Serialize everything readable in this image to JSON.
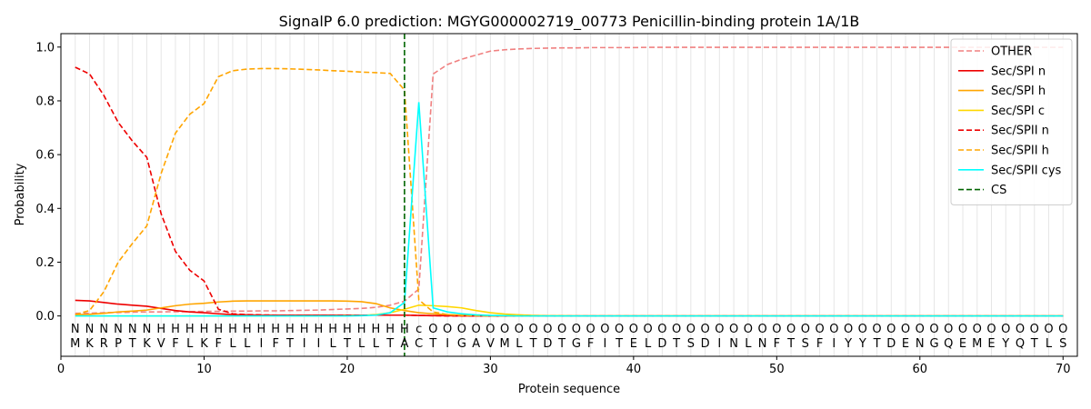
{
  "chart_data": {
    "type": "line",
    "title": "SignalP 6.0 prediction: MGYG000002719_00773 Penicillin-binding protein 1A/1B",
    "xlabel": "Protein sequence",
    "ylabel": "Probability",
    "xlim": [
      0,
      71
    ],
    "ylim": [
      -0.15,
      1.05
    ],
    "xticks": [
      0,
      10,
      20,
      30,
      40,
      50,
      60,
      70
    ],
    "yticks": [
      0.0,
      0.2,
      0.4,
      0.6,
      0.8,
      1.0
    ],
    "xtick_labels": [
      "0",
      "10",
      "20",
      "30",
      "40",
      "50",
      "60",
      "70"
    ],
    "ytick_labels": [
      "0.0",
      "0.2",
      "0.4",
      "0.6",
      "0.8",
      "1.0"
    ],
    "vertical_gridlines_every_position": true,
    "legend_position": "top-right",
    "sequence": [
      "M",
      "K",
      "R",
      "P",
      "T",
      "K",
      "V",
      "F",
      "L",
      "K",
      "F",
      "L",
      "L",
      "I",
      "F",
      "T",
      "I",
      "I",
      "L",
      "T",
      "L",
      "L",
      "T",
      "A",
      "C",
      "T",
      "I",
      "G",
      "A",
      "V",
      "M",
      "L",
      "T",
      "D",
      "T",
      "G",
      "F",
      "I",
      "T",
      "E",
      "L",
      "D",
      "T",
      "S",
      "D",
      "I",
      "N",
      "L",
      "N",
      "F",
      "T",
      "S",
      "F",
      "I",
      "Y",
      "Y",
      "T",
      "D",
      "E",
      "N",
      "G",
      "Q",
      "E",
      "M",
      "E",
      "Y",
      "Q",
      "T",
      "L",
      "S"
    ],
    "region_labels": [
      "N",
      "N",
      "N",
      "N",
      "N",
      "N",
      "H",
      "H",
      "H",
      "H",
      "H",
      "H",
      "H",
      "H",
      "H",
      "H",
      "H",
      "H",
      "H",
      "H",
      "H",
      "H",
      "H",
      "H",
      "c",
      "O",
      "O",
      "O",
      "O",
      "O",
      "O",
      "O",
      "O",
      "O",
      "O",
      "O",
      "O",
      "O",
      "O",
      "O",
      "O",
      "O",
      "O",
      "O",
      "O",
      "O",
      "O",
      "O",
      "O",
      "O",
      "O",
      "O",
      "O",
      "O",
      "O",
      "O",
      "O",
      "O",
      "O",
      "O",
      "O",
      "O",
      "O",
      "O",
      "O",
      "O",
      "O",
      "O",
      "O",
      "O"
    ],
    "region_colors": {
      "N": "#ff0000",
      "H": "#ffa500",
      "c": "#00e5ee",
      "O": "#808080"
    },
    "cleavage_site": 24,
    "series": [
      {
        "name": "OTHER",
        "color": "#f08080",
        "dash": "dashed",
        "values": [
          0.01,
          0.01,
          0.012,
          0.013,
          0.014,
          0.015,
          0.015,
          0.016,
          0.016,
          0.017,
          0.017,
          0.018,
          0.018,
          0.019,
          0.019,
          0.02,
          0.021,
          0.022,
          0.024,
          0.026,
          0.028,
          0.032,
          0.04,
          0.055,
          0.1,
          0.9,
          0.935,
          0.955,
          0.97,
          0.985,
          0.99,
          0.993,
          0.995,
          0.996,
          0.997,
          0.997,
          0.998,
          0.998,
          0.998,
          0.998,
          0.999,
          0.999,
          0.999,
          0.999,
          0.999,
          0.999,
          0.999,
          0.999,
          0.999,
          0.999,
          0.999,
          0.999,
          0.999,
          0.999,
          0.999,
          0.999,
          0.999,
          0.999,
          0.999,
          0.999,
          0.999,
          0.999,
          0.999,
          0.999,
          0.999,
          0.999,
          0.999,
          0.999,
          0.999,
          0.999
        ]
      },
      {
        "name": "Sec/SPI n",
        "color": "#ee0000",
        "dash": "solid",
        "values": [
          0.058,
          0.056,
          0.05,
          0.044,
          0.04,
          0.036,
          0.028,
          0.02,
          0.015,
          0.012,
          0.008,
          0.005,
          0.004,
          0.003,
          0.003,
          0.003,
          0.003,
          0.003,
          0.003,
          0.003,
          0.003,
          0.003,
          0.003,
          0.003,
          0.002,
          0.001,
          0.001,
          0.0,
          0.0,
          0.0,
          0.0,
          0.0,
          0.0,
          0.0,
          0.0,
          0.0,
          0.0,
          0.0,
          0.0,
          0.0,
          0.0,
          0.0,
          0.0,
          0.0,
          0.0,
          0.0,
          0.0,
          0.0,
          0.0,
          0.0,
          0.0,
          0.0,
          0.0,
          0.0,
          0.0,
          0.0,
          0.0,
          0.0,
          0.0,
          0.0,
          0.0,
          0.0,
          0.0,
          0.0,
          0.0,
          0.0,
          0.0,
          0.0,
          0.0,
          0.0
        ]
      },
      {
        "name": "Sec/SPI h",
        "color": "#ffa500",
        "dash": "solid",
        "values": [
          0.005,
          0.006,
          0.01,
          0.015,
          0.018,
          0.022,
          0.03,
          0.038,
          0.044,
          0.047,
          0.052,
          0.055,
          0.056,
          0.056,
          0.056,
          0.056,
          0.056,
          0.056,
          0.056,
          0.055,
          0.053,
          0.046,
          0.03,
          0.02,
          0.012,
          0.008,
          0.005,
          0.003,
          0.002,
          0.001,
          0.001,
          0.0,
          0.0,
          0.0,
          0.0,
          0.0,
          0.0,
          0.0,
          0.0,
          0.0,
          0.0,
          0.0,
          0.0,
          0.0,
          0.0,
          0.0,
          0.0,
          0.0,
          0.0,
          0.0,
          0.0,
          0.0,
          0.0,
          0.0,
          0.0,
          0.0,
          0.0,
          0.0,
          0.0,
          0.0,
          0.0,
          0.0,
          0.0,
          0.0,
          0.0,
          0.0,
          0.0,
          0.0,
          0.0,
          0.0
        ]
      },
      {
        "name": "Sec/SPI c",
        "color": "#ffd700",
        "dash": "solid",
        "values": [
          0.0,
          0.0,
          0.0,
          0.0,
          0.0,
          0.0,
          0.0,
          0.0,
          0.0,
          0.0,
          0.0,
          0.0,
          0.0,
          0.0,
          0.0,
          0.0,
          0.0,
          0.0,
          0.0,
          0.001,
          0.002,
          0.005,
          0.012,
          0.025,
          0.04,
          0.038,
          0.035,
          0.03,
          0.02,
          0.012,
          0.007,
          0.004,
          0.002,
          0.001,
          0.001,
          0.0,
          0.0,
          0.0,
          0.0,
          0.0,
          0.0,
          0.0,
          0.0,
          0.0,
          0.0,
          0.0,
          0.0,
          0.0,
          0.0,
          0.0,
          0.0,
          0.0,
          0.0,
          0.0,
          0.0,
          0.0,
          0.0,
          0.0,
          0.0,
          0.0,
          0.0,
          0.0,
          0.0,
          0.0,
          0.0,
          0.0,
          0.0,
          0.0,
          0.0,
          0.0
        ]
      },
      {
        "name": "Sec/SPII n",
        "color": "#ee0000",
        "dash": "dashed",
        "values": [
          0.925,
          0.9,
          0.82,
          0.72,
          0.65,
          0.59,
          0.38,
          0.24,
          0.17,
          0.13,
          0.025,
          0.008,
          0.005,
          0.004,
          0.003,
          0.003,
          0.003,
          0.003,
          0.003,
          0.003,
          0.003,
          0.003,
          0.003,
          0.003,
          0.002,
          0.001,
          0.0,
          0.0,
          0.0,
          0.0,
          0.0,
          0.0,
          0.0,
          0.0,
          0.0,
          0.0,
          0.0,
          0.0,
          0.0,
          0.0,
          0.0,
          0.0,
          0.0,
          0.0,
          0.0,
          0.0,
          0.0,
          0.0,
          0.0,
          0.0,
          0.0,
          0.0,
          0.0,
          0.0,
          0.0,
          0.0,
          0.0,
          0.0,
          0.0,
          0.0,
          0.0,
          0.0,
          0.0,
          0.0,
          0.0,
          0.0,
          0.0,
          0.0,
          0.0,
          0.0
        ]
      },
      {
        "name": "Sec/SPII h",
        "color": "#ffa500",
        "dash": "dashed",
        "values": [
          0.005,
          0.02,
          0.09,
          0.2,
          0.27,
          0.335,
          0.53,
          0.68,
          0.75,
          0.79,
          0.89,
          0.912,
          0.918,
          0.92,
          0.92,
          0.919,
          0.917,
          0.915,
          0.912,
          0.91,
          0.907,
          0.905,
          0.902,
          0.84,
          0.06,
          0.015,
          0.005,
          0.002,
          0.001,
          0.0,
          0.0,
          0.0,
          0.0,
          0.0,
          0.0,
          0.0,
          0.0,
          0.0,
          0.0,
          0.0,
          0.0,
          0.0,
          0.0,
          0.0,
          0.0,
          0.0,
          0.0,
          0.0,
          0.0,
          0.0,
          0.0,
          0.0,
          0.0,
          0.0,
          0.0,
          0.0,
          0.0,
          0.0,
          0.0,
          0.0,
          0.0,
          0.0,
          0.0,
          0.0,
          0.0,
          0.0,
          0.0,
          0.0,
          0.0,
          0.0
        ]
      },
      {
        "name": "Sec/SPII cys",
        "color": "#00ffff",
        "dash": "solid",
        "values": [
          0.0,
          0.0,
          0.0,
          0.0,
          0.0,
          0.0,
          0.0,
          0.0,
          0.0,
          0.0,
          0.0,
          0.0,
          0.0,
          0.0,
          0.0,
          0.0,
          0.0,
          0.0,
          0.0,
          0.0,
          0.001,
          0.003,
          0.012,
          0.05,
          0.795,
          0.03,
          0.015,
          0.008,
          0.004,
          0.002,
          0.001,
          0.0,
          0.0,
          0.0,
          0.0,
          0.0,
          0.0,
          0.0,
          0.0,
          0.0,
          0.0,
          0.0,
          0.0,
          0.0,
          0.0,
          0.0,
          0.0,
          0.0,
          0.0,
          0.0,
          0.0,
          0.0,
          0.0,
          0.0,
          0.0,
          0.0,
          0.0,
          0.0,
          0.0,
          0.0,
          0.0,
          0.0,
          0.0,
          0.0,
          0.0,
          0.0,
          0.0,
          0.0,
          0.0,
          0.0
        ]
      }
    ],
    "cs_legend": {
      "name": "CS",
      "color": "#006400",
      "dash": "dashed"
    }
  }
}
